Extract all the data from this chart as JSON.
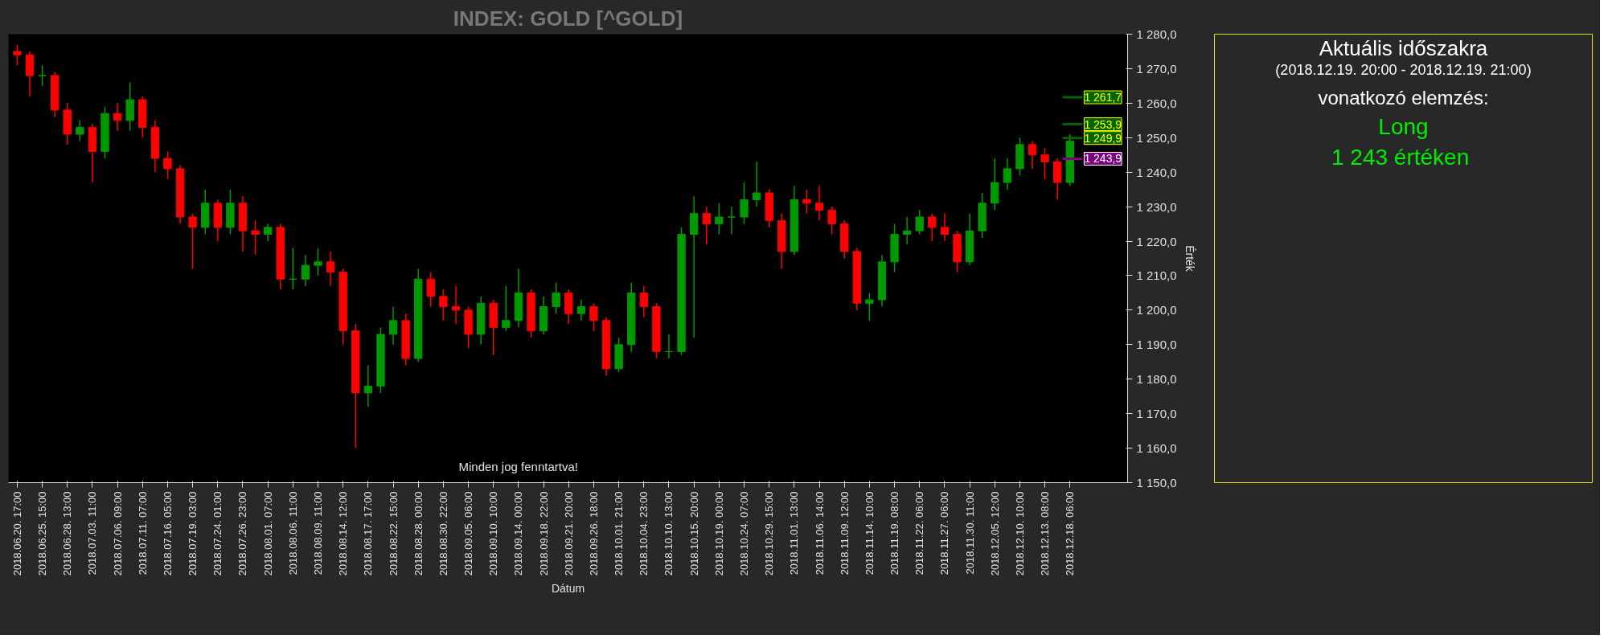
{
  "chart_data": [
    {
      "type": "candlestick",
      "title": "INDEX: GOLD [^GOLD]",
      "xlabel": "Dátum",
      "ylabel": "Érték",
      "annotations": [
        "Minden jog fenntartva!"
      ],
      "categories": [
        "2018.06.20. 17:00",
        null,
        "2018.06.25. 15:00",
        null,
        "2018.06.28. 13:00",
        null,
        "2018.07.03. 11:00",
        null,
        "2018.07.06. 09:00",
        null,
        "2018.07.11. 07:00",
        null,
        "2018.07.16. 05:00",
        null,
        "2018.07.19. 03:00",
        null,
        "2018.07.24. 01:00",
        null,
        "2018.07.26. 23:00",
        null,
        "2018.08.01. 07:00",
        null,
        "2018.08.06. 11:00",
        null,
        "2018.08.09. 11:00",
        null,
        "2018.08.14. 12:00",
        null,
        "2018.08.17. 17:00",
        null,
        "2018.08.22. 15:00",
        null,
        "2018.08.28. 00:00",
        null,
        "2018.08.30. 22:00",
        null,
        "2018.09.05. 06:00",
        null,
        "2018.09.10. 10:00",
        null,
        "2018.09.14. 00:00",
        null,
        "2018.09.18. 22:00",
        null,
        "2018.09.21. 20:00",
        null,
        "2018.09.26. 18:00",
        null,
        "2018.10.01. 21:00",
        null,
        "2018.10.04. 23:00",
        null,
        "2018.10.10. 13:00",
        null,
        "2018.10.15. 20:00",
        null,
        "2018.10.19. 00:00",
        null,
        "2018.10.24. 07:00",
        null,
        "2018.10.29. 15:00",
        null,
        "2018.11.01. 13:00",
        null,
        "2018.11.06. 14:00",
        null,
        "2018.11.09. 12:00",
        null,
        "2018.11.14. 10:00",
        null,
        "2018.11.19. 08:00",
        null,
        "2018.11.22. 06:00",
        null,
        "2018.11.27. 06:00",
        null,
        "2018.11.30. 11:00",
        null,
        "2018.12.05. 12:00",
        null,
        "2018.12.10. 10:00",
        null,
        "2018.12.13. 08:00",
        null,
        "2018.12.18. 06:00"
      ],
      "ohlc": [
        [
          1275,
          1277,
          1271,
          1274
        ],
        [
          1274,
          1275,
          1262,
          1268
        ],
        [
          1268,
          1271,
          1265,
          1268
        ],
        [
          1268,
          1269,
          1256,
          1258
        ],
        [
          1258,
          1260,
          1248,
          1251
        ],
        [
          1251,
          1255,
          1249,
          1253
        ],
        [
          1253,
          1254,
          1237,
          1246
        ],
        [
          1246,
          1259,
          1244,
          1257
        ],
        [
          1257,
          1260,
          1252,
          1255
        ],
        [
          1255,
          1266,
          1252,
          1261
        ],
        [
          1261,
          1262,
          1250,
          1253
        ],
        [
          1253,
          1255,
          1240,
          1244
        ],
        [
          1244,
          1246,
          1238,
          1241
        ],
        [
          1241,
          1242,
          1225,
          1227
        ],
        [
          1227,
          1228,
          1212,
          1224
        ],
        [
          1224,
          1235,
          1222,
          1231
        ],
        [
          1231,
          1232,
          1220,
          1224
        ],
        [
          1224,
          1235,
          1222,
          1231
        ],
        [
          1231,
          1233,
          1217,
          1223
        ],
        [
          1223,
          1226,
          1216,
          1222
        ],
        [
          1222,
          1225,
          1220,
          1224
        ],
        [
          1224,
          1225,
          1206,
          1209
        ],
        [
          1209,
          1218,
          1206,
          1209
        ],
        [
          1209,
          1216,
          1207,
          1213
        ],
        [
          1213,
          1218,
          1210,
          1214
        ],
        [
          1214,
          1217,
          1207,
          1211
        ],
        [
          1211,
          1212,
          1190,
          1194
        ],
        [
          1194,
          1196,
          1160,
          1176
        ],
        [
          1176,
          1184,
          1172,
          1178
        ],
        [
          1178,
          1195,
          1176,
          1193
        ],
        [
          1193,
          1201,
          1190,
          1197
        ],
        [
          1197,
          1199,
          1184,
          1186
        ],
        [
          1186,
          1212,
          1185,
          1209
        ],
        [
          1209,
          1211,
          1201,
          1204
        ],
        [
          1204,
          1206,
          1197,
          1201
        ],
        [
          1201,
          1207,
          1196,
          1200
        ],
        [
          1200,
          1201,
          1189,
          1193
        ],
        [
          1193,
          1204,
          1190,
          1202
        ],
        [
          1202,
          1203,
          1187,
          1195
        ],
        [
          1195,
          1207,
          1194,
          1197
        ],
        [
          1197,
          1212,
          1195,
          1205
        ],
        [
          1205,
          1206,
          1192,
          1194
        ],
        [
          1194,
          1204,
          1193,
          1201
        ],
        [
          1201,
          1208,
          1199,
          1205
        ],
        [
          1205,
          1206,
          1196,
          1199
        ],
        [
          1199,
          1203,
          1197,
          1201
        ],
        [
          1201,
          1202,
          1194,
          1197
        ],
        [
          1197,
          1198,
          1181,
          1183
        ],
        [
          1183,
          1192,
          1182,
          1190
        ],
        [
          1190,
          1208,
          1188,
          1205
        ],
        [
          1205,
          1207,
          1198,
          1201
        ],
        [
          1201,
          1202,
          1186,
          1188
        ],
        [
          1188,
          1193,
          1186,
          1188
        ],
        [
          1188,
          1224,
          1187,
          1222
        ],
        [
          1222,
          1233,
          1192,
          1228
        ],
        [
          1228,
          1230,
          1219,
          1225
        ],
        [
          1225,
          1231,
          1222,
          1227
        ],
        [
          1227,
          1230,
          1222,
          1227
        ],
        [
          1227,
          1237,
          1225,
          1232
        ],
        [
          1232,
          1243,
          1230,
          1234
        ],
        [
          1234,
          1235,
          1224,
          1226
        ],
        [
          1226,
          1228,
          1212,
          1217
        ],
        [
          1217,
          1236,
          1216,
          1232
        ],
        [
          1232,
          1235,
          1228,
          1231
        ],
        [
          1231,
          1236,
          1226,
          1229
        ],
        [
          1229,
          1230,
          1222,
          1225
        ],
        [
          1225,
          1226,
          1215,
          1217
        ],
        [
          1217,
          1218,
          1200,
          1202
        ],
        [
          1202,
          1205,
          1197,
          1203
        ],
        [
          1203,
          1216,
          1201,
          1214
        ],
        [
          1214,
          1225,
          1211,
          1222
        ],
        [
          1222,
          1227,
          1219,
          1223
        ],
        [
          1223,
          1229,
          1222,
          1227
        ],
        [
          1227,
          1228,
          1220,
          1224
        ],
        [
          1224,
          1228,
          1220,
          1222
        ],
        [
          1222,
          1223,
          1211,
          1214
        ],
        [
          1214,
          1228,
          1213,
          1223
        ],
        [
          1223,
          1234,
          1221,
          1231
        ],
        [
          1231,
          1244,
          1229,
          1237
        ],
        [
          1237,
          1244,
          1235,
          1241
        ],
        [
          1241,
          1250,
          1239,
          1248
        ],
        [
          1248,
          1249,
          1241,
          1245
        ],
        [
          1245,
          1247,
          1238,
          1243
        ],
        [
          1243,
          1244,
          1232,
          1237
        ],
        [
          1237,
          1251,
          1236,
          1249
        ]
      ],
      "colors": [
        "#ff0000",
        "#ff0000",
        "#009900",
        "#ff0000",
        "#ff0000",
        "#009900",
        "#ff0000",
        "#009900",
        "#ff0000",
        "#009900",
        "#ff0000",
        "#ff0000",
        "#ff0000",
        "#ff0000",
        "#ff0000",
        "#009900",
        "#ff0000",
        "#009900",
        "#ff0000",
        "#ff0000",
        "#009900",
        "#ff0000",
        "#009900",
        "#009900",
        "#009900",
        "#ff0000",
        "#ff0000",
        "#ff0000",
        "#009900",
        "#009900",
        "#009900",
        "#ff0000",
        "#009900",
        "#ff0000",
        "#ff0000",
        "#ff0000",
        "#ff0000",
        "#009900",
        "#ff0000",
        "#009900",
        "#009900",
        "#ff0000",
        "#009900",
        "#009900",
        "#ff0000",
        "#009900",
        "#ff0000",
        "#ff0000",
        "#009900",
        "#009900",
        "#ff0000",
        "#ff0000",
        "#009900",
        "#009900",
        "#009900",
        "#ff0000",
        "#009900",
        "#009900",
        "#009900",
        "#009900",
        "#ff0000",
        "#ff0000",
        "#009900",
        "#ff0000",
        "#ff0000",
        "#ff0000",
        "#ff0000",
        "#ff0000",
        "#009900",
        "#009900",
        "#009900",
        "#009900",
        "#009900",
        "#ff0000",
        "#ff0000",
        "#ff0000",
        "#009900",
        "#009900",
        "#009900",
        "#009900",
        "#009900",
        "#ff0000",
        "#ff0000",
        "#ff0000",
        "#009900"
      ],
      "ylim": [
        1150,
        1280
      ],
      "yticks": [
        {
          "value": 1150,
          "label": "1 150,0"
        },
        {
          "value": 1160,
          "label": "1 160,0"
        },
        {
          "value": 1170,
          "label": "1 170,0"
        },
        {
          "value": 1180,
          "label": "1 180,0"
        },
        {
          "value": 1190,
          "label": "1 190,0"
        },
        {
          "value": 1200,
          "label": "1 200,0"
        },
        {
          "value": 1210,
          "label": "1 210,0"
        },
        {
          "value": 1220,
          "label": "1 220,0"
        },
        {
          "value": 1230,
          "label": "1 230,0"
        },
        {
          "value": 1240,
          "label": "1 240,0"
        },
        {
          "value": 1250,
          "label": "1 250,0"
        },
        {
          "value": 1260,
          "label": "1 260,0"
        },
        {
          "value": 1270,
          "label": "1 270,0"
        },
        {
          "value": 1280,
          "label": "1 280,0"
        }
      ],
      "ref_lines": [
        {
          "axis": "y",
          "value": 1261.7,
          "label": "1 261,7",
          "color": "#006400"
        },
        {
          "axis": "y",
          "value": 1253.9,
          "label": "1 253,9",
          "color": "#006400"
        },
        {
          "axis": "y",
          "value": 1249.9,
          "label": "1 249,9",
          "color": "#006400"
        },
        {
          "axis": "y",
          "value": 1243.9,
          "label": "1 243,9",
          "color": "#800080"
        }
      ],
      "grid": false
    },
    {
      "type": "other",
      "title": "Aktuális időszakra",
      "subtitle": "(2018.12.19. 20:00 - 2018.12.19. 21:00)",
      "annotations": [
        "vonatkozó elemzés:",
        "Long",
        "1 243  értéken"
      ]
    }
  ]
}
